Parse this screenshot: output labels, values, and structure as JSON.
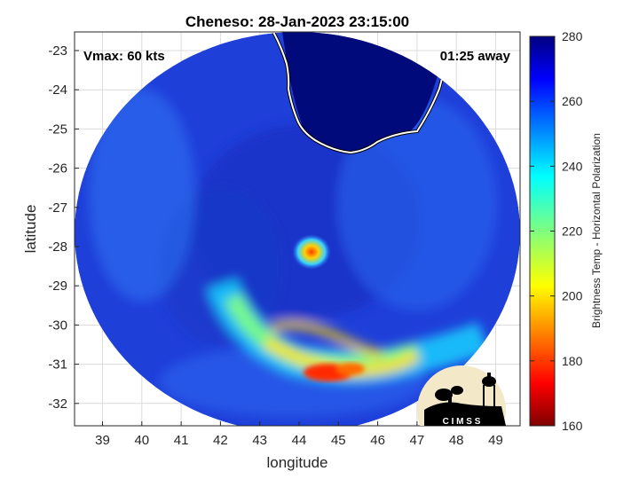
{
  "title": "Cheneso: 28-Jan-2023 23:15:00",
  "annotations": {
    "vmax": "Vmax: 60 kts",
    "away": "01:25 away"
  },
  "axes": {
    "xlabel": "longitude",
    "ylabel": "latitude",
    "xticks": [
      "39",
      "40",
      "41",
      "42",
      "43",
      "44",
      "45",
      "46",
      "47",
      "48",
      "49"
    ],
    "yticks": [
      "-23",
      "-24",
      "-25",
      "-26",
      "-27",
      "-28",
      "-29",
      "-30",
      "-31",
      "-32"
    ]
  },
  "colorbar": {
    "label": "Brightness Temp - Horizontal Polarization",
    "ticks": [
      "280",
      "260",
      "240",
      "220",
      "200",
      "180",
      "160"
    ],
    "range": [
      160,
      280
    ],
    "colormap": "jet"
  },
  "logo": {
    "text": "C I M S S"
  },
  "colors": {
    "background_cold": "#1f3fd9",
    "land": "#000a7a",
    "coast": "#ffffff"
  }
}
